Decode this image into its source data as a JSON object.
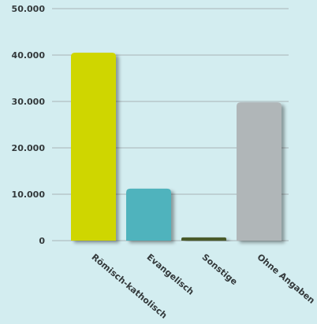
{
  "chart_data": {
    "type": "bar",
    "title": "",
    "xlabel": "",
    "ylabel": "",
    "categories": [
      "Römisch-katholisch",
      "Evangelisch",
      "Sonstige",
      "Ohne Angaben"
    ],
    "values": [
      40500,
      11200,
      700,
      29800
    ],
    "colors": [
      "#cfd600",
      "#50b3bd",
      "#4a5a2a",
      "#b0b6b8"
    ],
    "ylim": [
      0,
      50000
    ],
    "yticks": [
      0,
      10000,
      20000,
      30000,
      40000,
      50000
    ],
    "ytick_labels": [
      "0",
      "10.000",
      "20.000",
      "30.000",
      "40.000",
      "50.000"
    ],
    "grid": true,
    "legend": "none"
  }
}
